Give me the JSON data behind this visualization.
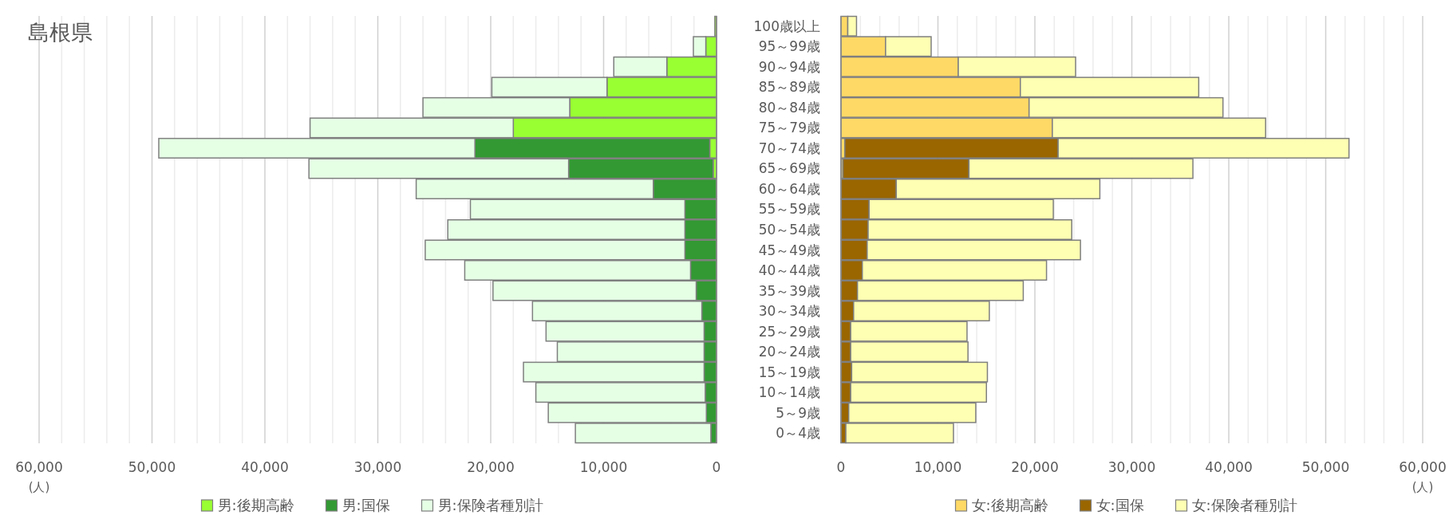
{
  "chart_data": [
    {
      "type": "bar",
      "orientation": "horizontal",
      "stacked": true,
      "title": "島根県",
      "xlabel": "(人)",
      "grid": "x",
      "legend": "bottom",
      "categories": [
        "100歳以上",
        "95～99歳",
        "90～94歳",
        "85～89歳",
        "80～84歳",
        "75～79歳",
        "70～74歳",
        "65～69歳",
        "60～64歳",
        "55～59歳",
        "50～54歳",
        "45～49歳",
        "40～44歳",
        "35～39歳",
        "30～34歳",
        "25～29歳",
        "20～24歳",
        "15～19歳",
        "10～14歳",
        "5～9歳",
        "0～4歳"
      ],
      "xlim": [
        60000,
        0
      ],
      "xticks": [
        {
          "value": 60000,
          "label": "60,000"
        },
        {
          "value": 58000,
          "label": null
        },
        {
          "value": 56000,
          "label": null
        },
        {
          "value": 54000,
          "label": null
        },
        {
          "value": 52000,
          "label": null
        },
        {
          "value": 50000,
          "label": "50,000"
        },
        {
          "value": 48000,
          "label": null
        },
        {
          "value": 46000,
          "label": null
        },
        {
          "value": 44000,
          "label": null
        },
        {
          "value": 42000,
          "label": null
        },
        {
          "value": 40000,
          "label": "40,000"
        },
        {
          "value": 38000,
          "label": null
        },
        {
          "value": 36000,
          "label": null
        },
        {
          "value": 34000,
          "label": null
        },
        {
          "value": 32000,
          "label": null
        },
        {
          "value": 30000,
          "label": "30,000"
        },
        {
          "value": 28000,
          "label": null
        },
        {
          "value": 26000,
          "label": null
        },
        {
          "value": 24000,
          "label": null
        },
        {
          "value": 22000,
          "label": null
        },
        {
          "value": 20000,
          "label": "20,000"
        },
        {
          "value": 18000,
          "label": null
        },
        {
          "value": 16000,
          "label": null
        },
        {
          "value": 14000,
          "label": null
        },
        {
          "value": 12000,
          "label": null
        },
        {
          "value": 10000,
          "label": "10,000"
        },
        {
          "value": 8000,
          "label": null
        },
        {
          "value": 6000,
          "label": null
        },
        {
          "value": 4000,
          "label": null
        },
        {
          "value": 2000,
          "label": null
        },
        0
      ],
      "series": [
        {
          "name": "男:後期高齢",
          "color": "#99ff33",
          "values": [
            150,
            950,
            4400,
            9700,
            13000,
            18000,
            600,
            300,
            0,
            0,
            0,
            0,
            0,
            0,
            0,
            0,
            0,
            0,
            0,
            0,
            0
          ]
        },
        {
          "name": "男:国保",
          "color": "#339933",
          "values": [
            0,
            0,
            0,
            0,
            0,
            0,
            20800,
            12800,
            5600,
            2800,
            2800,
            2800,
            2300,
            1800,
            1300,
            1100,
            1100,
            1100,
            1000,
            900,
            500
          ]
        },
        {
          "name": "男:保険者種別計",
          "color": "#e5ffe5",
          "values": [
            0,
            1100,
            4700,
            10200,
            13000,
            18000,
            28000,
            23000,
            21000,
            19000,
            21000,
            23000,
            20000,
            18000,
            15000,
            14000,
            13000,
            16000,
            15000,
            14000,
            12000
          ]
        }
      ]
    },
    {
      "type": "bar",
      "orientation": "horizontal",
      "stacked": true,
      "xlabel": "(人)",
      "grid": "x",
      "legend": "bottom",
      "tick_labels": "x",
      "categories": [
        null,
        null,
        null,
        null,
        null,
        null,
        null,
        null,
        null,
        null,
        null,
        null,
        null,
        null,
        null,
        null,
        null,
        null,
        null,
        null,
        null
      ],
      "xlim": [
        0,
        60000
      ],
      "xticks": [
        0,
        {
          "value": 2000,
          "label": null
        },
        {
          "value": 4000,
          "label": null
        },
        {
          "value": 6000,
          "label": null
        },
        {
          "value": 8000,
          "label": null
        },
        {
          "value": 10000,
          "label": "10,000"
        },
        {
          "value": 12000,
          "label": null
        },
        {
          "value": 14000,
          "label": null
        },
        {
          "value": 16000,
          "label": null
        },
        {
          "value": 18000,
          "label": null
        },
        {
          "value": 20000,
          "label": "20,000"
        },
        {
          "value": 22000,
          "label": null
        },
        {
          "value": 24000,
          "label": null
        },
        {
          "value": 26000,
          "label": null
        },
        {
          "value": 28000,
          "label": null
        },
        {
          "value": 30000,
          "label": "30,000"
        },
        {
          "value": 32000,
          "label": null
        },
        {
          "value": 34000,
          "label": null
        },
        {
          "value": 36000,
          "label": null
        },
        {
          "value": 38000,
          "label": null
        },
        {
          "value": 40000,
          "label": "40,000"
        },
        {
          "value": 42000,
          "label": null
        },
        {
          "value": 44000,
          "label": null
        },
        {
          "value": 46000,
          "label": null
        },
        {
          "value": 48000,
          "label": null
        },
        {
          "value": 50000,
          "label": "50,000"
        },
        {
          "value": 52000,
          "label": null
        },
        {
          "value": 54000,
          "label": null
        },
        {
          "value": 56000,
          "label": null
        },
        {
          "value": 58000,
          "label": null
        },
        {
          "value": 60000,
          "label": "60,000"
        }
      ],
      "series": [
        {
          "name": "女:後期高齢",
          "color": "#ffd966",
          "values": [
            700,
            4600,
            12100,
            18500,
            19400,
            21800,
            400,
            200,
            0,
            0,
            0,
            0,
            0,
            0,
            0,
            0,
            0,
            0,
            0,
            0,
            0
          ]
        },
        {
          "name": "女:国保",
          "color": "#996600",
          "values": [
            0,
            0,
            0,
            0,
            0,
            0,
            22000,
            13000,
            5700,
            2900,
            2800,
            2700,
            2200,
            1700,
            1300,
            1000,
            1000,
            1100,
            1000,
            800,
            500
          ]
        },
        {
          "name": "女:保険者種別計",
          "color": "#ffffb3",
          "values": [
            900,
            4700,
            12100,
            18400,
            20000,
            22000,
            30000,
            23100,
            21000,
            19000,
            21000,
            22000,
            19000,
            17100,
            14000,
            12000,
            12100,
            14000,
            14000,
            13100,
            11100
          ]
        }
      ]
    }
  ]
}
